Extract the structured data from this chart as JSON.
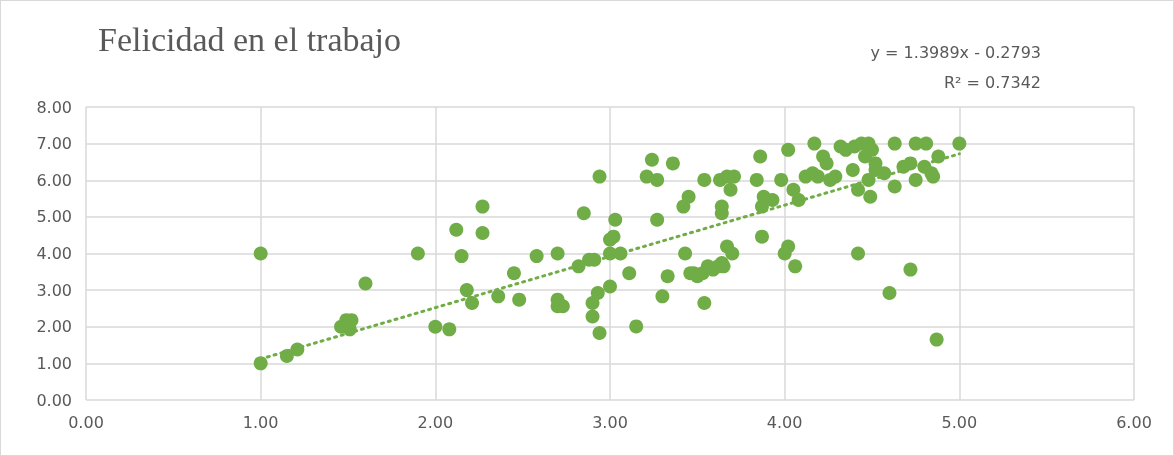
{
  "chart_data": {
    "type": "scatter",
    "title": "Felicidad en el trabajo",
    "annotations": [
      "y = 1.3989x - 0.2793",
      "R² = 0.7342"
    ],
    "xlim": [
      0,
      6
    ],
    "xticks": [
      {
        "value": 0,
        "label": "0.00"
      },
      {
        "value": 1,
        "label": "1.00"
      },
      {
        "value": 2,
        "label": "2.00"
      },
      {
        "value": 3,
        "label": "3.00"
      },
      {
        "value": 4,
        "label": "4.00"
      },
      {
        "value": 5,
        "label": "5.00"
      },
      {
        "value": 6,
        "label": "6.00"
      }
    ],
    "ylim": [
      0,
      8
    ],
    "yticks": [
      {
        "value": 0,
        "label": "0.00"
      },
      {
        "value": 1,
        "label": "1.00"
      },
      {
        "value": 2,
        "label": "2.00"
      },
      {
        "value": 3,
        "label": "3.00"
      },
      {
        "value": 4,
        "label": "4.00"
      },
      {
        "value": 5,
        "label": "5.00"
      },
      {
        "value": 6,
        "label": "6.00"
      },
      {
        "value": 7,
        "label": "7.00"
      },
      {
        "value": 8,
        "label": "8.00"
      }
    ],
    "grid": true,
    "marker": "circle",
    "series": [
      {
        "type": "scatter",
        "color": "#70ad47",
        "x": [
          1.0,
          1.0,
          1.15,
          1.21,
          1.46,
          1.49,
          1.52,
          1.51,
          1.6,
          1.9,
          2.0,
          2.08,
          2.12,
          2.15,
          2.18,
          2.21,
          2.27,
          2.27,
          2.36,
          2.45,
          2.48,
          2.58,
          2.7,
          2.7,
          2.7,
          2.73,
          2.82,
          2.85,
          2.88,
          2.91,
          2.9,
          2.9,
          2.93,
          2.94,
          2.94,
          3.0,
          3.0,
          3.0,
          3.02,
          3.03,
          3.06,
          3.11,
          3.15,
          3.21,
          3.24,
          3.27,
          3.27,
          3.3,
          3.33,
          3.36,
          3.42,
          3.43,
          3.45,
          3.46,
          3.48,
          3.5,
          3.53,
          3.54,
          3.54,
          3.56,
          3.59,
          3.62,
          3.63,
          3.64,
          3.64,
          3.64,
          3.65,
          3.67,
          3.67,
          3.69,
          3.71,
          3.7,
          3.84,
          3.86,
          3.88,
          3.87,
          3.87,
          3.93,
          3.98,
          4.0,
          4.02,
          4.02,
          4.05,
          4.06,
          4.08,
          4.12,
          4.16,
          4.17,
          4.19,
          4.22,
          4.24,
          4.26,
          4.29,
          4.32,
          4.35,
          4.39,
          4.4,
          4.42,
          4.42,
          4.44,
          4.46,
          4.48,
          4.48,
          4.49,
          4.5,
          4.52,
          4.52,
          4.57,
          4.6,
          4.63,
          4.63,
          4.68,
          4.72,
          4.72,
          4.75,
          4.75,
          4.8,
          4.81,
          4.84,
          4.85,
          4.87,
          4.88,
          5.0
        ],
        "values": [
          4.0,
          1.0,
          1.2,
          1.38,
          2.0,
          2.18,
          2.18,
          1.93,
          3.18,
          4.0,
          2.0,
          1.93,
          4.65,
          3.93,
          3.0,
          2.65,
          5.28,
          4.56,
          2.83,
          3.46,
          2.74,
          3.93,
          4.0,
          2.74,
          2.56,
          2.56,
          3.65,
          5.1,
          3.83,
          3.83,
          2.65,
          2.28,
          2.92,
          6.1,
          1.83,
          4.38,
          4.0,
          3.1,
          4.46,
          4.92,
          4.0,
          3.46,
          2.01,
          6.1,
          6.56,
          6.01,
          4.92,
          2.83,
          3.38,
          6.46,
          5.28,
          4.0,
          5.55,
          3.46,
          3.46,
          3.38,
          3.46,
          6.01,
          2.65,
          3.65,
          3.56,
          3.65,
          6.01,
          5.28,
          5.1,
          3.74,
          3.65,
          6.1,
          4.19,
          5.74,
          6.1,
          4.0,
          6.01,
          6.65,
          5.55,
          5.28,
          4.46,
          5.46,
          6.01,
          4.0,
          4.19,
          6.83,
          5.74,
          3.65,
          5.46,
          6.1,
          6.19,
          7.0,
          6.1,
          6.65,
          6.46,
          6.01,
          6.1,
          6.92,
          6.83,
          6.28,
          6.92,
          5.74,
          4.0,
          7.0,
          6.65,
          7.0,
          6.01,
          5.55,
          6.83,
          6.46,
          6.28,
          6.19,
          2.92,
          5.83,
          7.0,
          6.37,
          6.46,
          3.56,
          6.01,
          7.0,
          6.37,
          7.0,
          6.19,
          6.1,
          1.65,
          6.65,
          7.0
        ]
      },
      {
        "type": "line",
        "color": "#70ad47",
        "line_style": "dotted",
        "marker": "none",
        "x": [
          1.0,
          5.0
        ],
        "values": [
          1.12,
          6.72
        ]
      }
    ]
  }
}
